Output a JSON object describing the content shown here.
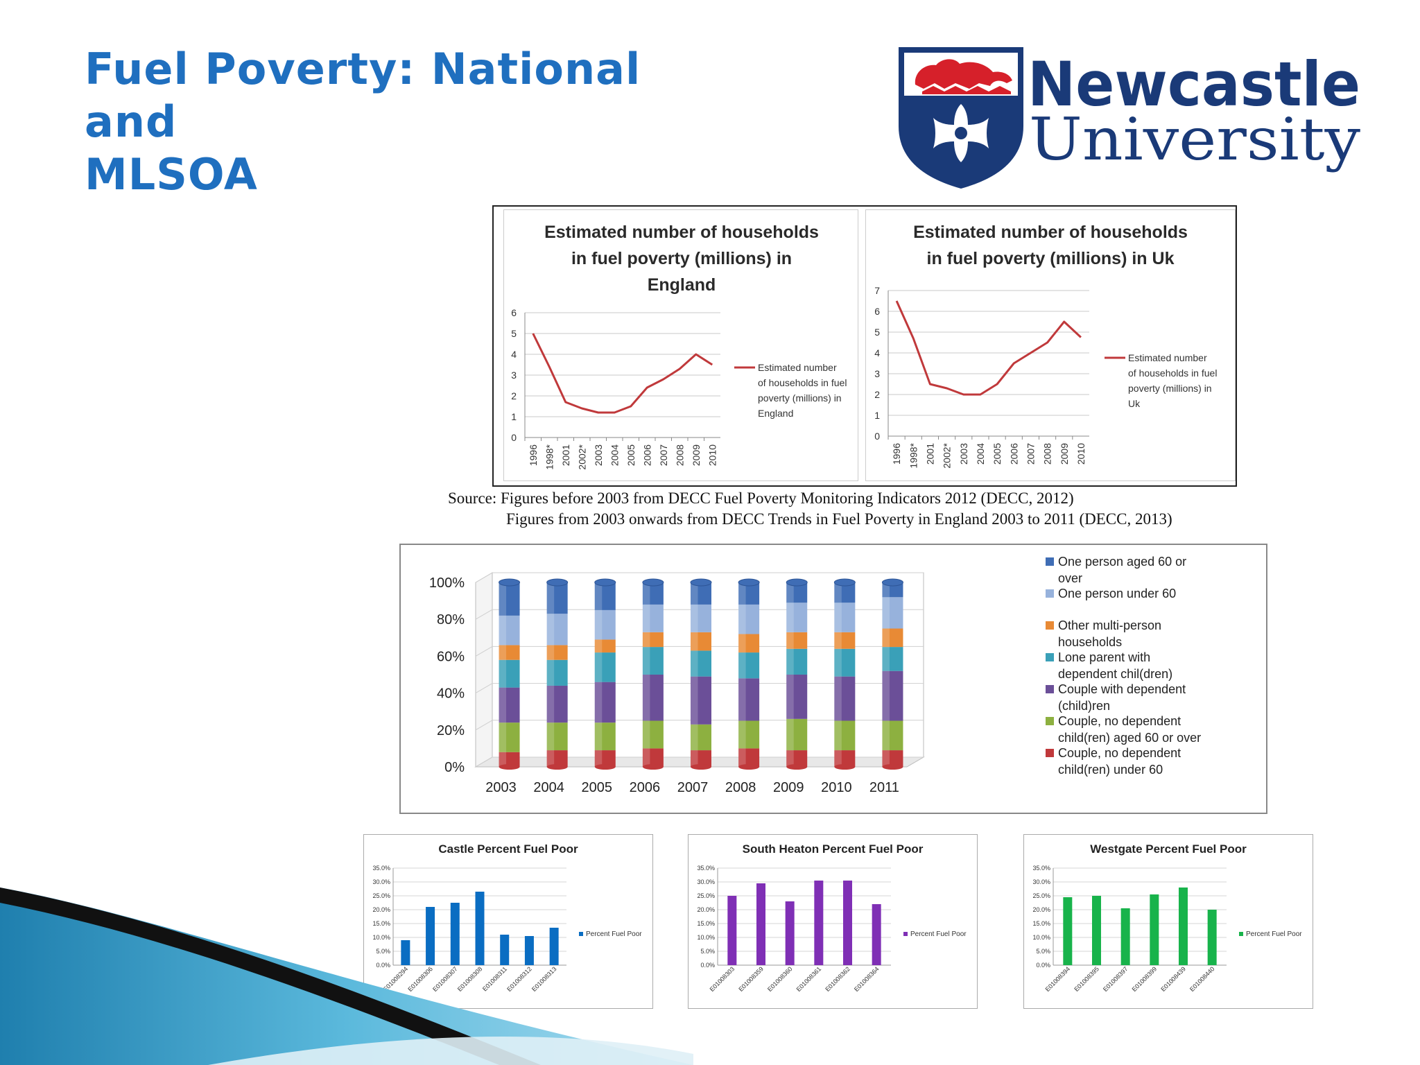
{
  "slide": {
    "title_line1": "Fuel Poverty: National and",
    "title_line2": "MLSOA",
    "logo": {
      "name_line1": "Newcastle",
      "name_line2": "University",
      "navy": "#1a3a78",
      "red": "#d6202a"
    },
    "source_line1": "Source: Figures before 2003 from DECC Fuel Poverty Monitoring Indicators 2012 (DECC, 2012)",
    "source_line2": "Figures from 2003 onwards from DECC Trends in Fuel Poverty in England 2003 to 2011 (DECC, 2013)"
  },
  "chart_data": [
    {
      "id": "england",
      "type": "line",
      "title": [
        "Estimated number of households",
        "in fuel poverty (millions) in",
        "England"
      ],
      "categories": [
        "1996",
        "1998*",
        "2001",
        "2002*",
        "2003",
        "2004",
        "2005",
        "2006",
        "2007",
        "2008",
        "2009",
        "2010"
      ],
      "series": [
        {
          "name": [
            "Estimated number",
            "of households in fuel",
            "poverty (millions) in",
            "England"
          ],
          "values": [
            5.0,
            3.4,
            1.7,
            1.4,
            1.2,
            1.2,
            1.5,
            2.4,
            2.8,
            3.3,
            4.0,
            3.5
          ],
          "color": "#c0393b"
        }
      ],
      "yticks": [
        "0",
        "1",
        "2",
        "3",
        "4",
        "5",
        "6"
      ],
      "ylim": [
        0,
        6
      ],
      "grid": true,
      "legend": "right"
    },
    {
      "id": "uk",
      "type": "line",
      "title": [
        "Estimated number of households",
        "in fuel poverty (millions) in Uk"
      ],
      "categories": [
        "1996",
        "1998*",
        "2001",
        "2002*",
        "2003",
        "2004",
        "2005",
        "2006",
        "2007",
        "2008",
        "2009",
        "2010"
      ],
      "series": [
        {
          "name": [
            "Estimated number",
            "of households in fuel",
            "poverty (millions) in",
            "Uk"
          ],
          "values": [
            6.5,
            4.7,
            2.5,
            2.3,
            2.0,
            2.0,
            2.5,
            3.5,
            4.0,
            4.5,
            5.5,
            4.75
          ],
          "color": "#c0393b"
        }
      ],
      "yticks": [
        "0",
        "1",
        "2",
        "3",
        "4",
        "5",
        "6",
        "7"
      ],
      "ylim": [
        0,
        7
      ],
      "grid": true,
      "legend": "right"
    },
    {
      "id": "household-types",
      "type": "bar",
      "stacked": "percent",
      "categories": [
        "2003",
        "2004",
        "2005",
        "2006",
        "2007",
        "2008",
        "2009",
        "2010",
        "2011"
      ],
      "yticks": [
        "0%",
        "20%",
        "40%",
        "60%",
        "80%",
        "100%"
      ],
      "ylim": [
        0,
        100
      ],
      "grid": true,
      "legend": "right",
      "series": [
        {
          "name": [
            "Couple, no dependent",
            "child(ren) under 60"
          ],
          "color": "#c0393b",
          "values": [
            8,
            9,
            9,
            10,
            9,
            10,
            9,
            9,
            9
          ]
        },
        {
          "name": [
            "Couple, no dependent",
            "child(ren) aged 60 or over"
          ],
          "color": "#8db040",
          "values": [
            16,
            15,
            15,
            15,
            14,
            15,
            17,
            16,
            16
          ]
        },
        {
          "name": [
            "Couple with dependent",
            "(child)ren"
          ],
          "color": "#6b4f98",
          "values": [
            19,
            20,
            22,
            25,
            26,
            23,
            24,
            24,
            27
          ]
        },
        {
          "name": [
            "Lone parent with",
            "dependent chil(dren)"
          ],
          "color": "#3aa0b8",
          "values": [
            15,
            14,
            16,
            15,
            14,
            14,
            14,
            15,
            13
          ]
        },
        {
          "name": [
            "Other multi-person",
            "households"
          ],
          "color": "#e88a35",
          "values": [
            8,
            8,
            7,
            8,
            10,
            10,
            9,
            9,
            10
          ]
        },
        {
          "name": [
            "One person under 60"
          ],
          "color": "#97b2dc",
          "values": [
            16,
            17,
            16,
            15,
            15,
            16,
            16,
            16,
            17
          ]
        },
        {
          "name": [
            "One person aged 60 or",
            "over"
          ],
          "color": "#3f6db5",
          "values": [
            18,
            17,
            15,
            12,
            12,
            12,
            11,
            11,
            8
          ]
        }
      ]
    },
    {
      "id": "castle",
      "type": "bar",
      "title": "Castle Percent Fuel Poor",
      "categories": [
        "E01008294",
        "E01008306",
        "E01008307",
        "E01008308",
        "E01008311",
        "E01008312",
        "E01008313"
      ],
      "series": [
        {
          "name": "Percent Fuel Poor",
          "values": [
            9.0,
            21.0,
            22.5,
            26.5,
            11.0,
            10.5,
            13.5
          ],
          "color": "#0a6dc2"
        }
      ],
      "yticks": [
        "0.0%",
        "5.0%",
        "10.0%",
        "15.0%",
        "20.0%",
        "25.0%",
        "30.0%",
        "35.0%"
      ],
      "ylim": [
        0,
        35
      ],
      "grid": true,
      "legend": "right"
    },
    {
      "id": "south-heaton",
      "type": "bar",
      "title": "South Heaton Percent Fuel Poor",
      "categories": [
        "E01008303",
        "E01008359",
        "E01008360",
        "E01008361",
        "E01008362",
        "E01008364"
      ],
      "series": [
        {
          "name": "Percent Fuel Poor",
          "values": [
            25.0,
            29.5,
            23.0,
            30.5,
            30.5,
            22.0
          ],
          "color": "#7f2fb5"
        }
      ],
      "yticks": [
        "0.0%",
        "5.0%",
        "10.0%",
        "15.0%",
        "20.0%",
        "25.0%",
        "30.0%",
        "35.0%"
      ],
      "ylim": [
        0,
        35
      ],
      "grid": true,
      "legend": "right"
    },
    {
      "id": "westgate",
      "type": "bar",
      "title": "Westgate Percent Fuel Poor",
      "categories": [
        "E01008394",
        "E01008395",
        "E01008397",
        "E01008399",
        "E01008439",
        "E01008440"
      ],
      "series": [
        {
          "name": "Percent Fuel Poor",
          "values": [
            24.5,
            25.0,
            20.5,
            25.5,
            28.0,
            20.0
          ],
          "color": "#18b34b"
        }
      ],
      "yticks": [
        "0.0%",
        "5.0%",
        "10.0%",
        "15.0%",
        "20.0%",
        "25.0%",
        "30.0%",
        "35.0%"
      ],
      "ylim": [
        0,
        35
      ],
      "grid": true,
      "legend": "right"
    }
  ]
}
